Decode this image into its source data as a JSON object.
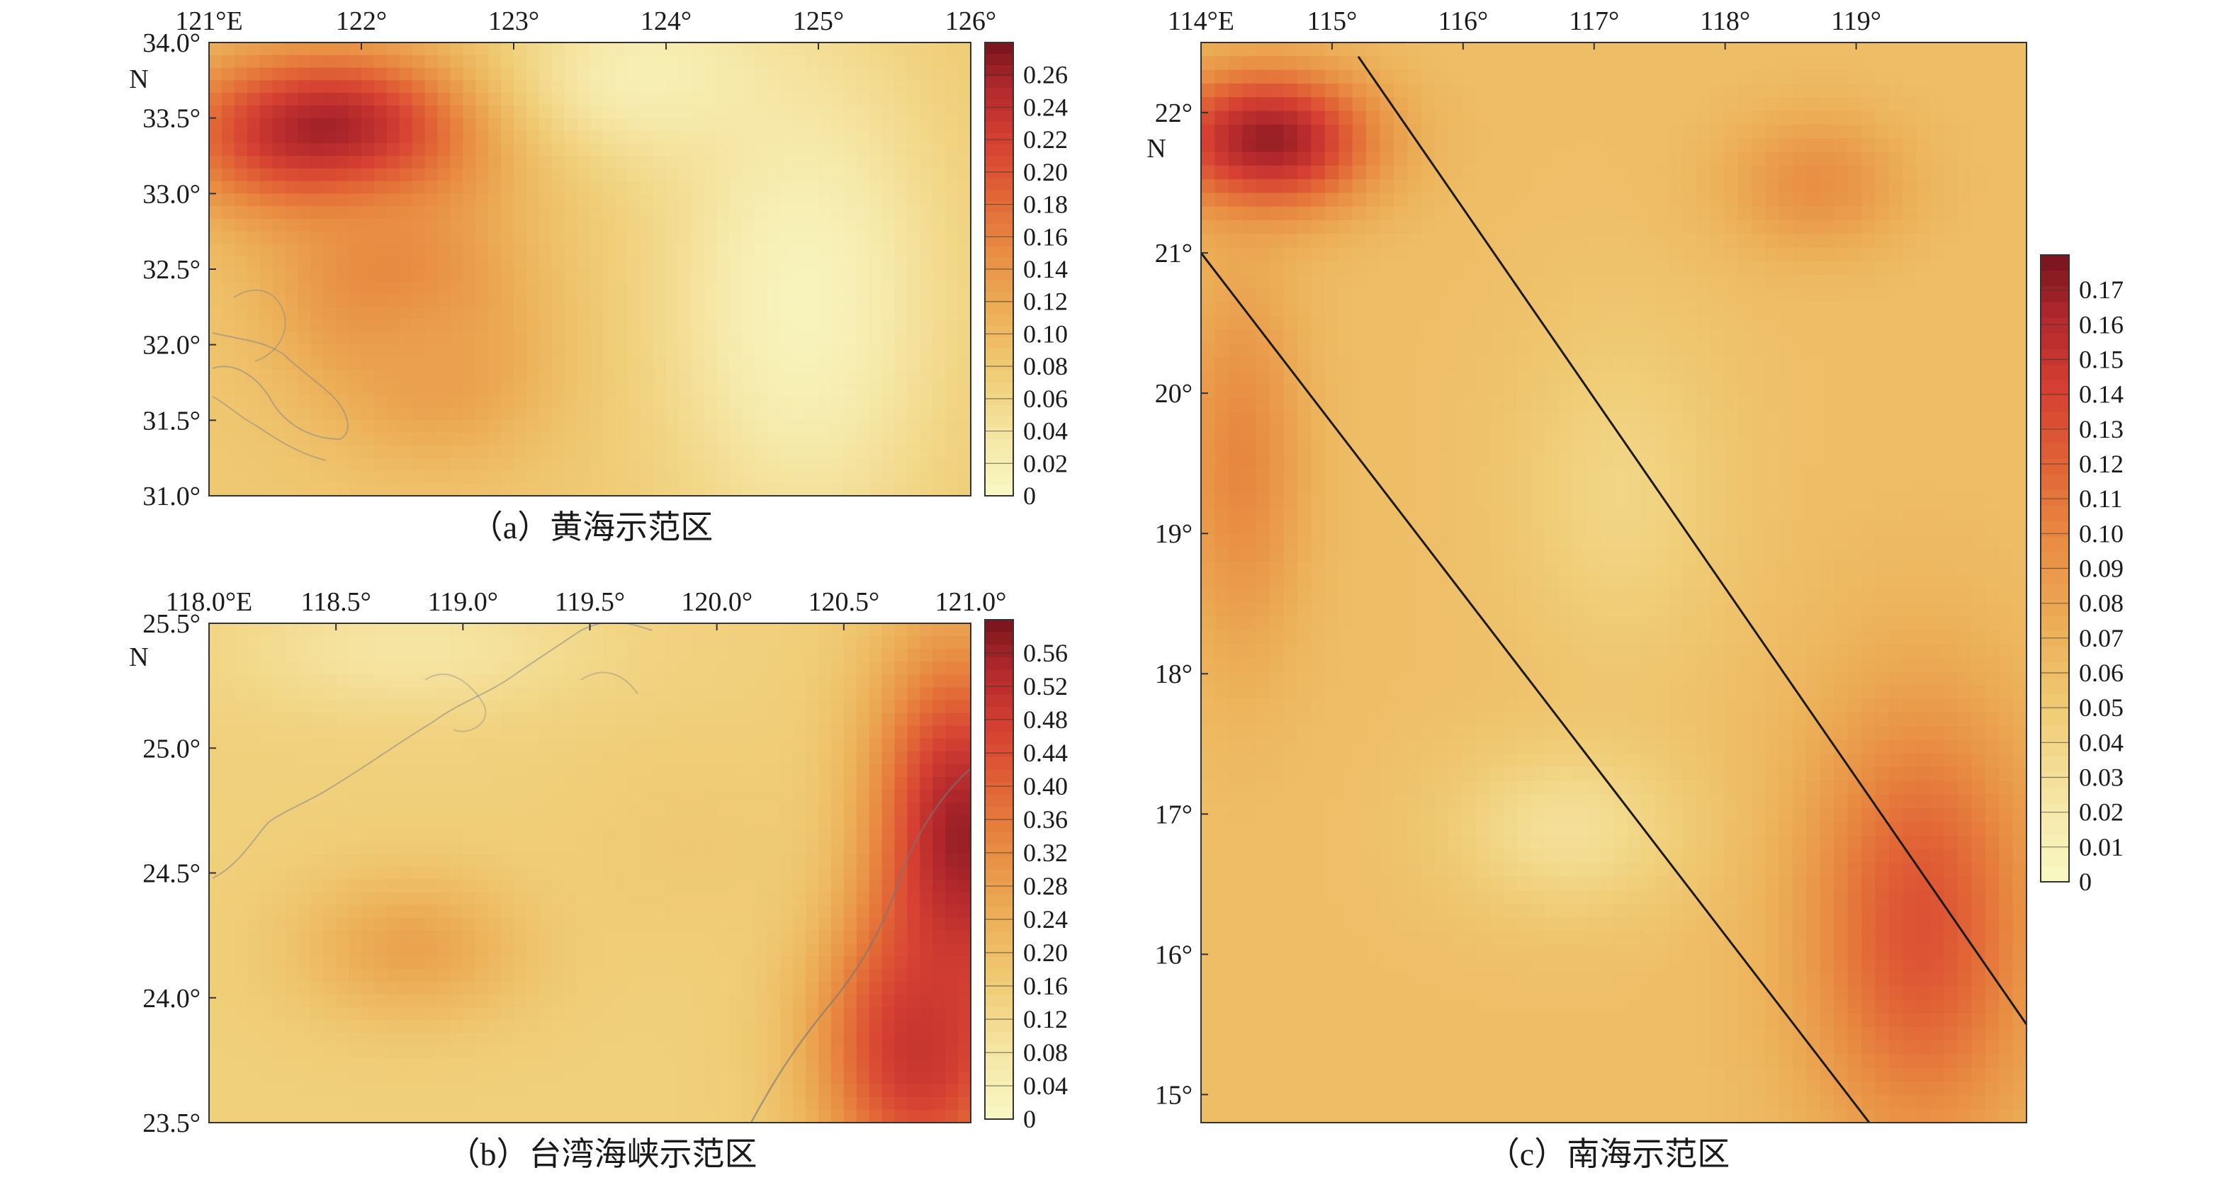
{
  "chart_data": [
    {
      "type": "heatmap",
      "panel": "a",
      "caption": "（a）黄海示范区",
      "x_ticks": [
        "121°E",
        "122°",
        "123°",
        "124°",
        "125°",
        "126°"
      ],
      "x_values": [
        121,
        122,
        123,
        124,
        125,
        126
      ],
      "xlim": [
        121,
        126
      ],
      "y_ticks": [
        "34.0°",
        "33.5°",
        "33.0°",
        "32.5°",
        "32.0°",
        "31.5°",
        "31.0°"
      ],
      "y_values": [
        34.0,
        33.5,
        33.0,
        32.5,
        32.0,
        31.5,
        31.0
      ],
      "ylim": [
        31.0,
        34.0
      ],
      "y_unit": "N",
      "colorbar_ticks": [
        "0.26",
        "0.24",
        "0.22",
        "0.20",
        "0.18",
        "0.16",
        "0.14",
        "0.12",
        "0.10",
        "0.08",
        "0.06",
        "0.04",
        "0.02",
        "0"
      ],
      "colorbar_values": [
        0.26,
        0.24,
        0.22,
        0.2,
        0.18,
        0.16,
        0.14,
        0.12,
        0.1,
        0.08,
        0.06,
        0.04,
        0.02,
        0
      ],
      "vmax": 0.28,
      "base": 0.08,
      "features": [
        {
          "lon": 121.8,
          "lat": 33.4,
          "value": 0.27,
          "sx": 1.0,
          "sy": 0.55
        },
        {
          "lon": 122.2,
          "lat": 32.4,
          "value": 0.16,
          "sx": 0.8,
          "sy": 0.7
        },
        {
          "lon": 122.5,
          "lat": 31.8,
          "value": 0.13,
          "sx": 0.7,
          "sy": 0.6
        },
        {
          "lon": 124.9,
          "lat": 32.3,
          "value": 0.01,
          "sx": 0.9,
          "sy": 1.6
        },
        {
          "lon": 123.9,
          "lat": 33.8,
          "value": 0.02,
          "sx": 0.9,
          "sy": 0.6
        }
      ]
    },
    {
      "type": "heatmap",
      "panel": "b",
      "caption": "（b）台湾海峡示范区",
      "x_ticks": [
        "118.0°E",
        "118.5°",
        "119.0°",
        "119.5°",
        "120.0°",
        "120.5°",
        "121.0°"
      ],
      "x_values": [
        118.0,
        118.5,
        119.0,
        119.5,
        120.0,
        120.5,
        121.0
      ],
      "xlim": [
        118.0,
        121.0
      ],
      "y_ticks": [
        "25.5°",
        "25.0°",
        "24.5°",
        "24.0°",
        "23.5°"
      ],
      "y_values": [
        25.5,
        25.0,
        24.5,
        24.0,
        23.5
      ],
      "ylim": [
        23.5,
        25.5
      ],
      "y_unit": "N",
      "colorbar_ticks": [
        "0.56",
        "0.52",
        "0.48",
        "0.44",
        "0.40",
        "0.36",
        "0.32",
        "0.28",
        "0.24",
        "0.20",
        "0.16",
        "0.12",
        "0.08",
        "0.04",
        "0"
      ],
      "colorbar_values": [
        0.56,
        0.52,
        0.48,
        0.44,
        0.4,
        0.36,
        0.32,
        0.28,
        0.24,
        0.2,
        0.16,
        0.12,
        0.08,
        0.04,
        0
      ],
      "vmax": 0.6,
      "base": 0.15,
      "features": [
        {
          "lon": 120.95,
          "lat": 24.6,
          "value": 0.58,
          "sx": 0.35,
          "sy": 0.8
        },
        {
          "lon": 120.8,
          "lat": 23.8,
          "value": 0.5,
          "sx": 0.4,
          "sy": 0.6
        },
        {
          "lon": 118.8,
          "lat": 24.2,
          "value": 0.27,
          "sx": 0.45,
          "sy": 0.3
        },
        {
          "lon": 118.8,
          "lat": 25.4,
          "value": 0.08,
          "sx": 0.7,
          "sy": 0.25
        },
        {
          "lon": 119.9,
          "lat": 24.6,
          "value": 0.17,
          "sx": 0.5,
          "sy": 0.4
        }
      ]
    },
    {
      "type": "heatmap",
      "panel": "c",
      "caption": "（c）南海示范区",
      "x_ticks": [
        "114°E",
        "115°",
        "116°",
        "117°",
        "118°",
        "119°"
      ],
      "x_values": [
        114,
        115,
        116,
        117,
        118,
        119
      ],
      "xlim": [
        114,
        120.3
      ],
      "y_ticks": [
        "22°",
        "21°",
        "20°",
        "19°",
        "18°",
        "17°",
        "16°",
        "15°"
      ],
      "y_values": [
        22,
        21,
        20,
        19,
        18,
        17,
        16,
        15
      ],
      "ylim": [
        14.8,
        22.5
      ],
      "y_unit": "N",
      "colorbar_ticks": [
        "0.17",
        "0.16",
        "0.15",
        "0.14",
        "0.13",
        "0.12",
        "0.11",
        "0.10",
        "0.09",
        "0.08",
        "0.07",
        "0.06",
        "0.05",
        "0.04",
        "0.03",
        "0.02",
        "0.01",
        "0"
      ],
      "colorbar_values": [
        0.17,
        0.16,
        0.15,
        0.14,
        0.13,
        0.12,
        0.11,
        0.1,
        0.09,
        0.08,
        0.07,
        0.06,
        0.05,
        0.04,
        0.03,
        0.02,
        0.01,
        0
      ],
      "vmax": 0.18,
      "base": 0.06,
      "features": [
        {
          "lon": 114.5,
          "lat": 21.8,
          "value": 0.175,
          "sx": 0.8,
          "sy": 0.5
        },
        {
          "lon": 119.5,
          "lat": 16.2,
          "value": 0.13,
          "sx": 0.9,
          "sy": 1.6
        },
        {
          "lon": 114.3,
          "lat": 19.5,
          "value": 0.1,
          "sx": 0.5,
          "sy": 1.4
        },
        {
          "lon": 116.8,
          "lat": 16.9,
          "value": 0.03,
          "sx": 0.9,
          "sy": 0.6
        },
        {
          "lon": 117.2,
          "lat": 19.3,
          "value": 0.04,
          "sx": 0.8,
          "sy": 1.2
        },
        {
          "lon": 118.7,
          "lat": 21.5,
          "value": 0.095,
          "sx": 0.7,
          "sy": 0.5
        }
      ],
      "lines": [
        {
          "from": {
            "lon": 115.2,
            "lat": 22.4
          },
          "to": {
            "lon": 120.3,
            "lat": 15.5
          }
        },
        {
          "from": {
            "lon": 114.0,
            "lat": 21.0
          },
          "to": {
            "lon": 119.1,
            "lat": 14.8
          }
        }
      ]
    }
  ]
}
